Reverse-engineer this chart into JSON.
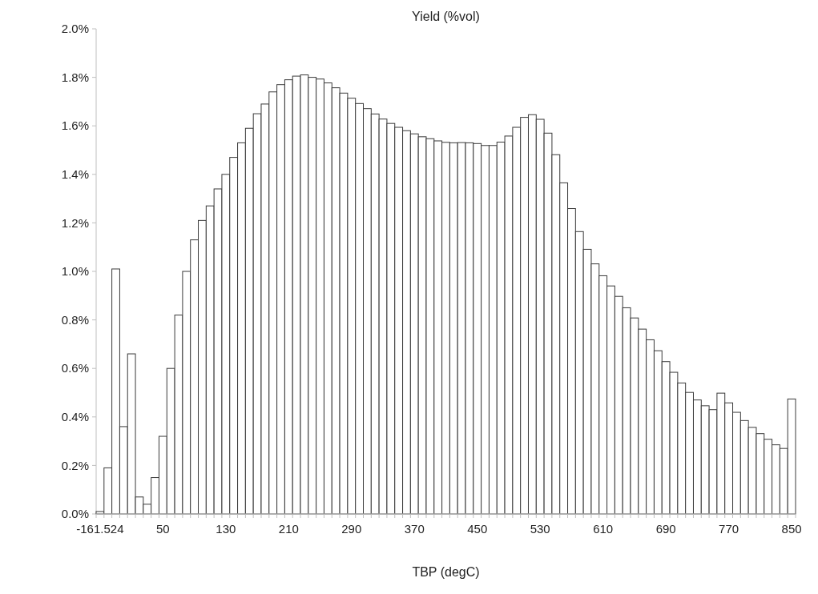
{
  "chart_data": {
    "type": "bar",
    "title": "Yield (%vol)",
    "xlabel": "TBP (degC)",
    "categories": [
      "-161.524",
      null,
      null,
      null,
      null,
      null,
      null,
      null,
      "50",
      null,
      null,
      null,
      null,
      null,
      null,
      null,
      "130",
      null,
      null,
      null,
      null,
      null,
      null,
      null,
      "210",
      null,
      null,
      null,
      null,
      null,
      null,
      null,
      "290",
      null,
      null,
      null,
      null,
      null,
      null,
      null,
      "370",
      null,
      null,
      null,
      null,
      null,
      null,
      null,
      "450",
      null,
      null,
      null,
      null,
      null,
      null,
      null,
      "530",
      null,
      null,
      null,
      null,
      null,
      null,
      null,
      "610",
      null,
      null,
      null,
      null,
      null,
      null,
      null,
      "690",
      null,
      null,
      null,
      null,
      null,
      null,
      null,
      "770",
      null,
      null,
      null,
      null,
      null,
      null,
      null,
      "850"
    ],
    "values": [
      0.01,
      0.19,
      1.01,
      0.36,
      0.66,
      0.07,
      0.04,
      0.15,
      0.32,
      0.6,
      0.82,
      1.0,
      1.13,
      1.21,
      1.27,
      1.34,
      1.4,
      1.47,
      1.53,
      1.59,
      1.65,
      1.69,
      1.74,
      1.77,
      1.79,
      1.805,
      1.81,
      1.8,
      1.793,
      1.777,
      1.757,
      1.735,
      1.714,
      1.692,
      1.671,
      1.649,
      1.628,
      1.61,
      1.594,
      1.58,
      1.567,
      1.555,
      1.547,
      1.538,
      1.532,
      1.53,
      1.531,
      1.53,
      1.527,
      1.519,
      1.519,
      1.533,
      1.558,
      1.594,
      1.635,
      1.646,
      1.627,
      1.57,
      1.481,
      1.365,
      1.259,
      1.164,
      1.091,
      1.031,
      0.982,
      0.94,
      0.897,
      0.85,
      0.808,
      0.762,
      0.718,
      0.673,
      0.628,
      0.584,
      0.54,
      0.501,
      0.47,
      0.446,
      0.43,
      0.498,
      0.458,
      0.419,
      0.385,
      0.357,
      0.331,
      0.308,
      0.285,
      0.27,
      0.474
    ],
    "color": "#ffffff",
    "ylim": [
      0,
      2.0
    ],
    "yticks": [
      {
        "value": 0,
        "label": "0.0%"
      },
      {
        "value": 0.2,
        "label": "0.2%"
      },
      {
        "value": 0.4,
        "label": "0.4%"
      },
      {
        "value": 0.6,
        "label": "0.6%"
      },
      {
        "value": 0.8,
        "label": "0.8%"
      },
      {
        "value": 1.0,
        "label": "1.0%"
      },
      {
        "value": 1.2,
        "label": "1.2%"
      },
      {
        "value": 1.4,
        "label": "1.4%"
      },
      {
        "value": 1.6,
        "label": "1.6%"
      },
      {
        "value": 1.8,
        "label": "1.8%"
      },
      {
        "value": 2.0,
        "label": "2.0%"
      }
    ],
    "grid": false
  }
}
